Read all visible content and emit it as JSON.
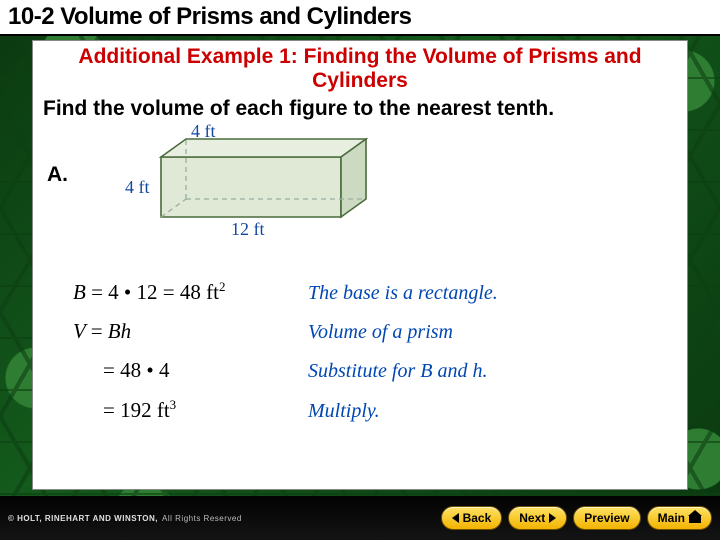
{
  "title": "10-2  Volume of Prisms and Cylinders",
  "example_header": "Additional Example 1: Finding the Volume of Prisms and Cylinders",
  "prompt": "Find the volume of each figure to the nearest tenth.",
  "part_label": "A.",
  "figure": {
    "type": "rect-prism",
    "dims": {
      "length": "12 ft",
      "width": "4 ft",
      "height": "4 ft"
    },
    "face_fill": "#dfe9d5",
    "edge_color": "#4a6b3d",
    "dashed_color": "#9aaea0",
    "label_color": "#1448a0",
    "label_font": "Georgia"
  },
  "work": [
    {
      "lhs_html": "B <span class='upright'>= 4 • 12 = 48 ft</span><sup>2</sup>",
      "rhs": "The base is a rectangle."
    },
    {
      "lhs_html": "V <span class='upright'>=</span> Bh",
      "rhs": "Volume of a prism"
    },
    {
      "lhs_html": "<span class='indent upright'>= 48 • 4</span>",
      "rhs": "Substitute for B and h."
    },
    {
      "lhs_html": "<span class='indent upright'>= 192 ft</span><sup>3</sup>",
      "rhs": "Multiply."
    }
  ],
  "nav": {
    "back": "Back",
    "next": "Next",
    "preview": "Preview",
    "main": "Main"
  },
  "footer": {
    "company": "© HOLT, RINEHART AND WINSTON,",
    "rights": "All Rights Reserved"
  },
  "colors": {
    "header_red": "#cc0000",
    "explain_blue": "#0047b3",
    "button_grad_top": "#ffe262",
    "button_grad_bot": "#f3b301",
    "background_base": "#0c3f12"
  }
}
